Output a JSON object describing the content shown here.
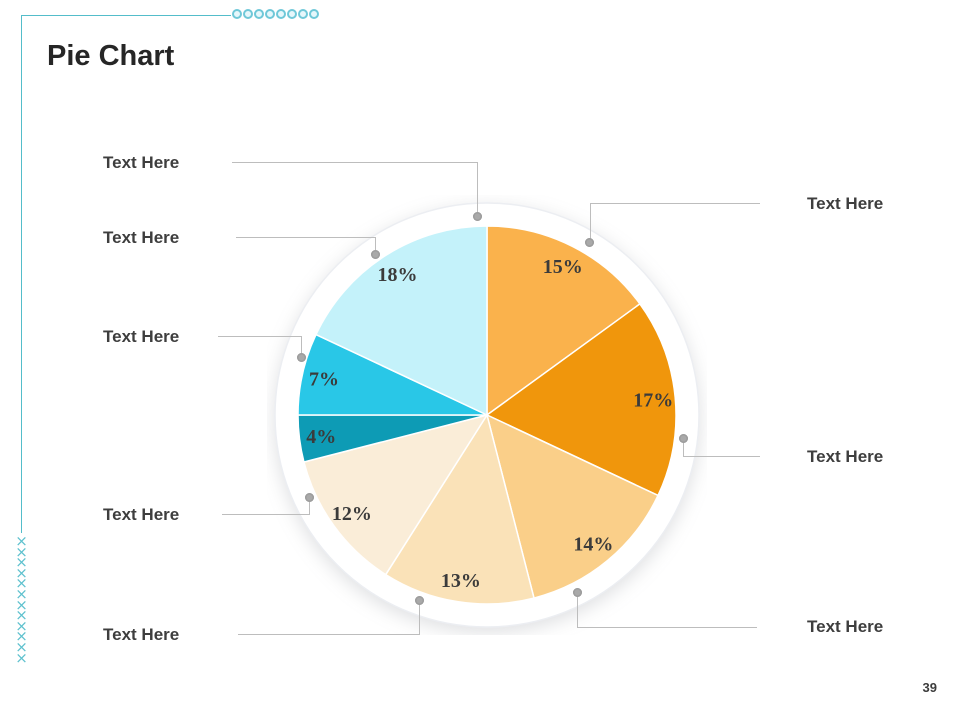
{
  "slide": {
    "title": "Pie Chart",
    "page_number": "39"
  },
  "chart_data": {
    "type": "pie",
    "title": "Pie Chart",
    "start_angle_deg": 0,
    "direction": "clockwise",
    "value_label_format": "{value}%",
    "slices": [
      {
        "label": "Text Here",
        "value": 15,
        "color": "#FAB24C"
      },
      {
        "label": "Text Here",
        "value": 17,
        "color": "#F0960C"
      },
      {
        "label": "Text Here",
        "value": 14,
        "color": "#FACF89"
      },
      {
        "label": "Text Here",
        "value": 13,
        "color": "#FAE2B8"
      },
      {
        "label": "Text Here",
        "value": 12,
        "color": "#FAEDD8"
      },
      {
        "label": "Text Here",
        "value": 4,
        "color": "#0D9BB5"
      },
      {
        "label": "Text Here",
        "value": 7,
        "color": "#29C7E7"
      },
      {
        "label": "Text Here",
        "value": 18,
        "color": "#C4F2FA"
      }
    ]
  },
  "connectors": {
    "left": [
      {
        "label": "Text Here"
      },
      {
        "label": "Text Here"
      },
      {
        "label": "Text Here"
      },
      {
        "label": "Text Here"
      },
      {
        "label": "Text Here"
      }
    ],
    "right": [
      {
        "label": "Text Here"
      },
      {
        "label": "Text Here"
      },
      {
        "label": "Text Here"
      }
    ]
  },
  "decor": {
    "circle_count": 8,
    "x_marks": "×\n×\n×\n×\n×\n×\n×\n×\n×\n×\n×\n×",
    "accent_teal": "#54bdca",
    "x_mark_teal": "#5ec1ce",
    "circle_stroke_teal": "#6fc8d8",
    "leader_line_gray": "#bdbdbd",
    "anchor_dot_gray": "#a9a9a9",
    "label_text_color": "#3e3e3e",
    "value_text_color": "#3b3b3b"
  }
}
